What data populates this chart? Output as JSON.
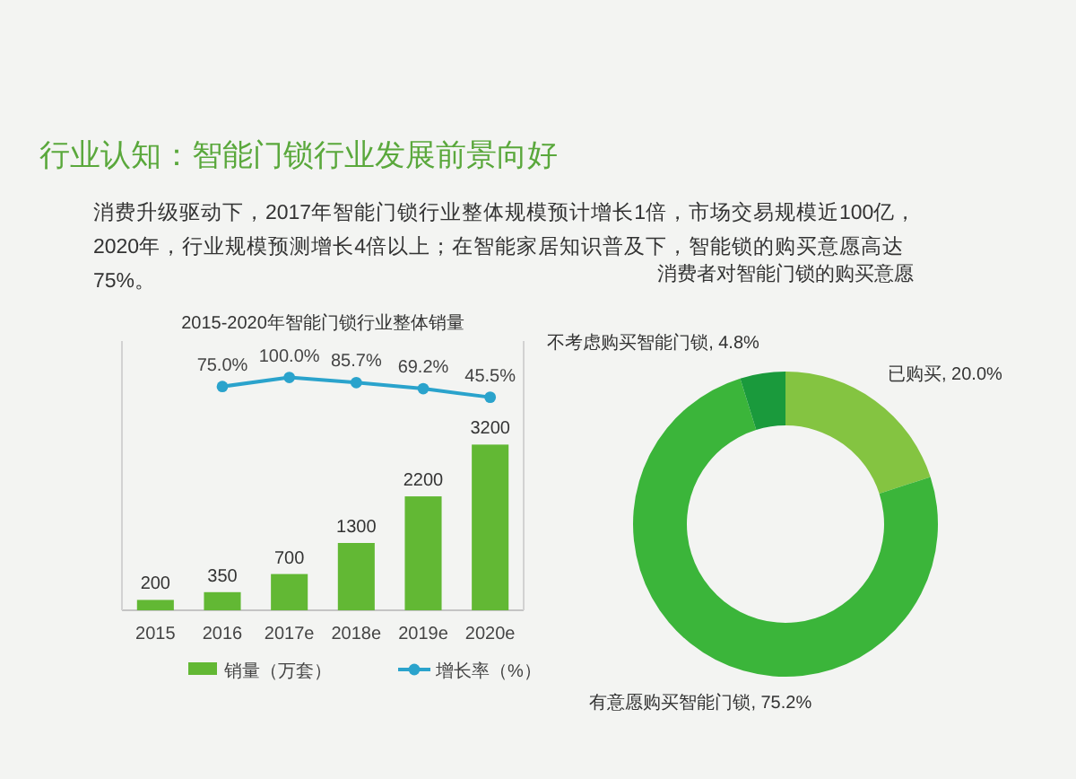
{
  "chart_data": [
    {
      "type": "other",
      "title": "行业认知：智能门锁行业发展前景向好",
      "subtitle": "消费升级驱动下，2017年智能门锁行业整体规模预计增长1倍，市场交易规模近100亿，2020年，行业规模预测增长4倍以上；在智能家居知识普及下，智能锁的购买意愿高达75%。"
    },
    {
      "type": "bar",
      "title": "2015-2020年智能门锁行业整体销量",
      "categories": [
        "2015",
        "2016",
        "2017e",
        "2018e",
        "2019e",
        "2020e"
      ],
      "series": [
        {
          "name": "销量（万套）",
          "type": "bar",
          "color": "#62b834",
          "values": [
            200,
            350,
            700,
            1300,
            2200,
            3200
          ]
        },
        {
          "name": "增长率（%）",
          "type": "line",
          "axis": "y2",
          "color": "#2aa3cc",
          "values": [
            null,
            75.0,
            100.0,
            85.7,
            69.2,
            45.5
          ],
          "value_labels": [
            null,
            "75.0%",
            "100.0%",
            "85.7%",
            "69.2%",
            "45.5%"
          ]
        }
      ],
      "ylim": [
        0,
        5200
      ],
      "y2lim": [
        -540,
        200
      ],
      "data_labels": true,
      "marker": "circle",
      "legend": "bottom",
      "tick_labels": "x"
    },
    {
      "type": "donut",
      "title": "消费者对智能门锁的购买意愿",
      "categories": [
        "已购买",
        "有意愿购买智能门锁",
        "不考虑购买智能门锁"
      ],
      "values": [
        20.0,
        75.2,
        4.8
      ],
      "colors": [
        "#84c441",
        "#3bb53a",
        "#1a9a3c"
      ],
      "value_labels": [
        "20.0%",
        "75.2%",
        "4.8%"
      ]
    }
  ]
}
